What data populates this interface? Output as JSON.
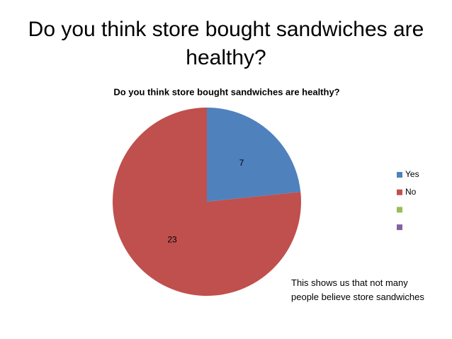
{
  "title": "Do you think store bought sandwiches are healthy?",
  "chart_data": {
    "type": "pie",
    "title": "Do you think store bought sandwiches are healthy?",
    "categories": [
      "Yes",
      "No",
      null,
      null
    ],
    "values": [
      7,
      23,
      null,
      null
    ],
    "colors": [
      "#4f81bd",
      "#c0504d",
      "#9bbb59",
      "#8064a2"
    ],
    "legend": "right",
    "annotation": "This shows us that not many people believe store sandwiches"
  }
}
